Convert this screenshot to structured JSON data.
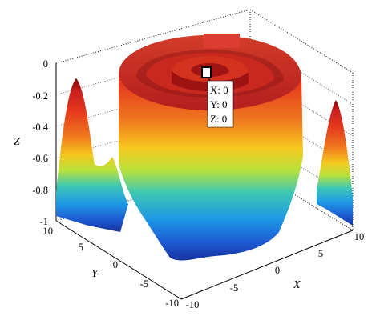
{
  "chart_data": {
    "type": "surface",
    "surface": "rotationally symmetric ripple z(r) plotted over x,y in [-10,10]; z = 0 at the centre, z near -1 at the corners",
    "colormap": "jet",
    "xlabel": "X",
    "ylabel": "Y",
    "zlabel": "Z",
    "xlim": [
      -10,
      10
    ],
    "ylim": [
      -10,
      10
    ],
    "zlim": [
      -1,
      0
    ],
    "x_ticks": [
      "-10",
      "-5",
      "0",
      "5",
      "10"
    ],
    "y_ticks": [
      "10",
      "5",
      "0",
      "-5",
      "-10"
    ],
    "z_ticks": [
      "0",
      "-0.2",
      "-0.4",
      "-0.6",
      "-0.8",
      "-1"
    ],
    "grid": true,
    "data_tip": {
      "lines": [
        "X: 0",
        "Y: 0",
        "Z: 0"
      ],
      "x": 0,
      "y": 0,
      "z": 0
    }
  }
}
